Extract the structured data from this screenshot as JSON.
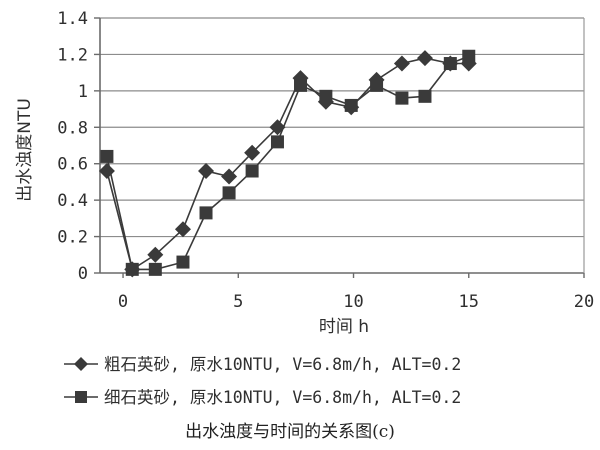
{
  "chart_data": {
    "type": "line",
    "title": "",
    "xlabel": "时间 h",
    "ylabel": "出水浊度NTU",
    "xlim": [
      -1,
      20
    ],
    "ylim": [
      0,
      1.4
    ],
    "x_ticks": [
      "0",
      "5",
      "10",
      "15",
      "20"
    ],
    "y_ticks": [
      "0",
      "0.2",
      "0.4",
      "0.6",
      "0.8",
      "1",
      "1.2",
      "1.4"
    ],
    "grid": "horizontal",
    "legend_position": "bottom",
    "series": [
      {
        "name": "粗石英砂, 原水10NTU, V=6.8m/h, ALT=0.2",
        "marker": "diamond",
        "color": "#3a3a3a",
        "x": [
          -0.7,
          0.4,
          1.4,
          2.6,
          3.6,
          4.6,
          5.6,
          6.7,
          7.7,
          8.8,
          9.9,
          11.0,
          12.1,
          13.1,
          14.2,
          15.0
        ],
        "y": [
          0.56,
          0.02,
          0.1,
          0.24,
          0.56,
          0.53,
          0.66,
          0.8,
          1.07,
          0.94,
          0.91,
          1.06,
          1.15,
          1.18,
          1.15,
          1.15
        ]
      },
      {
        "name": "细石英砂, 原水10NTU, V=6.8m/h, ALT=0.2",
        "marker": "square",
        "color": "#3a3a3a",
        "x": [
          -0.7,
          0.4,
          1.4,
          2.6,
          3.6,
          4.6,
          5.6,
          6.7,
          7.7,
          8.8,
          9.9,
          11.0,
          12.1,
          13.1,
          14.2,
          15.0
        ],
        "y": [
          0.64,
          0.02,
          0.02,
          0.06,
          0.33,
          0.44,
          0.56,
          0.72,
          1.03,
          0.97,
          0.92,
          1.03,
          0.96,
          0.97,
          1.15,
          1.19
        ]
      }
    ]
  },
  "caption": "出水浊度与时间的关系图(c)"
}
